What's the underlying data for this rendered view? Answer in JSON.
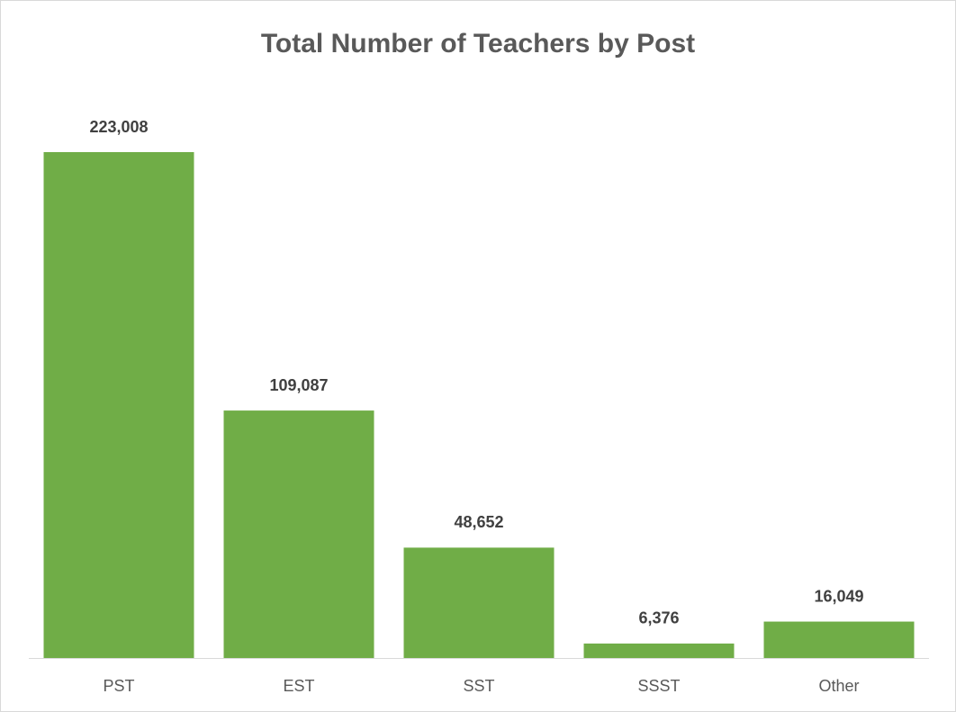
{
  "chart_data": {
    "type": "bar",
    "title": "Total Number of Teachers by Post",
    "categories": [
      "PST",
      "EST",
      "SST",
      "SSST",
      "Other"
    ],
    "values": [
      223008,
      109087,
      48652,
      6376,
      16049
    ],
    "value_labels": [
      "223,008",
      "109,087",
      "48,652",
      "6,376",
      "16,049"
    ],
    "color": "#70ad47",
    "grid": false
  }
}
